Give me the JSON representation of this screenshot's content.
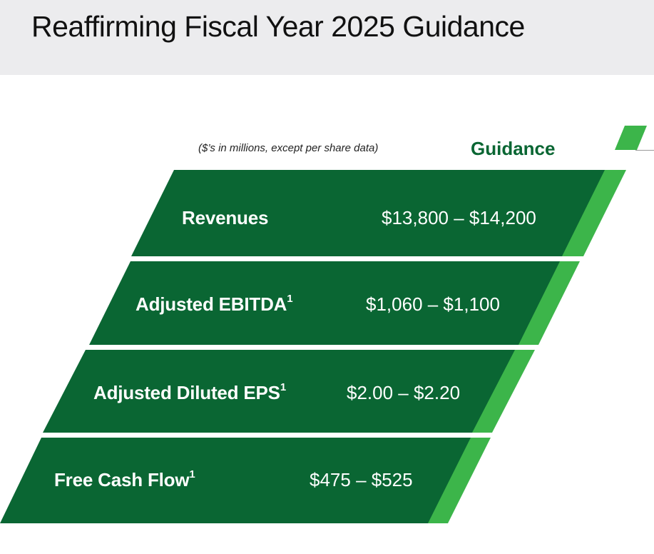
{
  "title": "Reaffirming Fiscal Year 2025 Guidance",
  "units_note": "($’s in millions, except per share data)",
  "guidance_heading": "Guidance",
  "colors": {
    "dark_green": "#0a6633",
    "accent_green": "#3cb54a",
    "heading_green": "#0a6633",
    "header_band": "#ececee"
  },
  "rows": [
    {
      "label": "Revenues",
      "footnote": "",
      "value": "$13,800 – $14,200"
    },
    {
      "label": "Adjusted EBITDA",
      "footnote": "1",
      "value": "$1,060 – $1,100"
    },
    {
      "label": "Adjusted Diluted EPS",
      "footnote": "1",
      "value": "$2.00 – $2.20"
    },
    {
      "label": "Free Cash Flow",
      "footnote": "1",
      "value": "$475 – $525"
    }
  ]
}
